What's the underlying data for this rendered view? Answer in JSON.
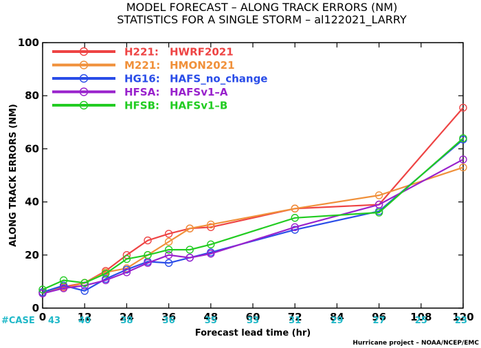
{
  "title_line1": "MODEL FORECAST – ALONG TRACK ERRORS (NM)",
  "title_line2": "STATISTICS FOR A SINGLE STORM – al122021_LARRY",
  "credit": "Hurricane project – NOAA/NCEP/EMC",
  "case_label": "#CASE",
  "chart_data": {
    "type": "line",
    "xlabel": "Forecast lead time (hr)",
    "ylabel": "ALONG TRACK ERRORS (NM)",
    "xlim": [
      0,
      120
    ],
    "ylim": [
      0,
      100
    ],
    "xticks": [
      0,
      12,
      24,
      36,
      48,
      60,
      72,
      84,
      96,
      108,
      120
    ],
    "yticks": [
      0,
      20,
      40,
      60,
      80,
      100
    ],
    "grid": false,
    "legend_position": "top-left",
    "cases": [
      {
        "x": 0,
        "n": "43"
      },
      {
        "x": 12,
        "n": "40"
      },
      {
        "x": 24,
        "n": "38"
      },
      {
        "x": 36,
        "n": "36"
      },
      {
        "x": 48,
        "n": "35"
      },
      {
        "x": 60,
        "n": "33"
      },
      {
        "x": 72,
        "n": "31"
      },
      {
        "x": 84,
        "n": "29"
      },
      {
        "x": 96,
        "n": "27"
      },
      {
        "x": 108,
        "n": "25"
      },
      {
        "x": 120,
        "n": "23"
      }
    ],
    "series": [
      {
        "name": "H221:",
        "desc": "HWRF2021",
        "color": "#ee4444",
        "x": [
          0,
          6,
          12,
          18,
          24,
          30,
          36,
          42,
          48,
          72,
          96,
          120
        ],
        "y": [
          6,
          8,
          9.5,
          14,
          20,
          25.5,
          28,
          30,
          30.5,
          37.5,
          39,
          75.5
        ]
      },
      {
        "name": "M221:",
        "desc": "HMON2021",
        "color": "#f0903a",
        "x": [
          0,
          6,
          12,
          18,
          24,
          30,
          36,
          42,
          48,
          72,
          96,
          120
        ],
        "y": [
          6,
          7.5,
          9.5,
          13.5,
          15,
          20,
          25,
          30,
          31.5,
          37.5,
          42.5,
          53
        ]
      },
      {
        "name": "HG16:",
        "desc": "HAFS_no_change",
        "color": "#2a4de8",
        "x": [
          0,
          6,
          12,
          18,
          24,
          30,
          36,
          42,
          48,
          72,
          96,
          120
        ],
        "y": [
          6,
          8.5,
          6.5,
          11,
          14.5,
          17.5,
          17,
          19,
          21,
          29.5,
          36.5,
          63.5
        ]
      },
      {
        "name": "HFSA:",
        "desc": "HAFSv1–A",
        "color": "#9922cc",
        "x": [
          0,
          6,
          12,
          18,
          24,
          30,
          36,
          42,
          48,
          72,
          96,
          120
        ],
        "y": [
          5.5,
          7.5,
          8.5,
          10.5,
          13.5,
          17,
          20,
          19,
          20.5,
          30.5,
          39,
          56
        ]
      },
      {
        "name": "HFSB:",
        "desc": "HAFSv1–B",
        "color": "#22cc22",
        "x": [
          0,
          6,
          12,
          18,
          24,
          30,
          36,
          42,
          48,
          72,
          96,
          120
        ],
        "y": [
          7,
          10.5,
          9.5,
          13,
          18.5,
          20,
          22,
          22,
          24,
          34,
          36,
          64
        ]
      }
    ]
  }
}
